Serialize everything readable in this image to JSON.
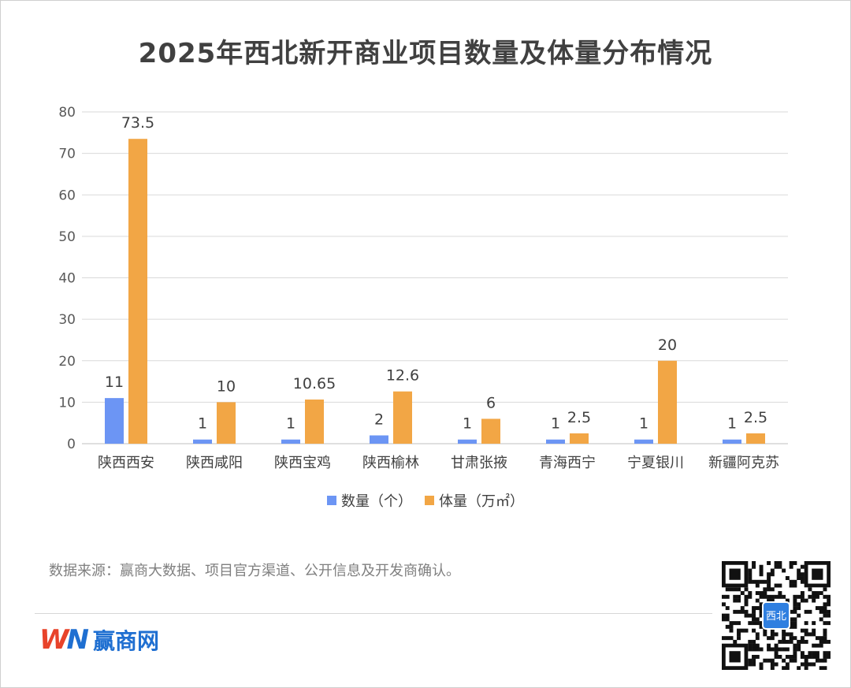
{
  "title": "2025年西北新开商业项目数量及体量分布情况",
  "colors": {
    "count": "#6c95f4",
    "volume": "#f2a645",
    "grid": "#d9d9d9",
    "text": "#404040"
  },
  "chart_data": {
    "type": "bar",
    "categories": [
      "陕西西安",
      "陕西咸阳",
      "陕西宝鸡",
      "陕西榆林",
      "甘肃张掖",
      "青海西宁",
      "宁夏银川",
      "新疆阿克苏"
    ],
    "series": [
      {
        "name": "数量（个）",
        "values": [
          11,
          1,
          1,
          2,
          1,
          1,
          1,
          1
        ],
        "labels": [
          "11",
          "1",
          "1",
          "2",
          "1",
          "1",
          "1",
          "1"
        ]
      },
      {
        "name": "体量（万㎡）",
        "values": [
          73.5,
          10,
          10.65,
          12.6,
          6,
          2.5,
          20,
          2.5
        ],
        "labels": [
          "73.5",
          "10",
          "10.65",
          "12.6",
          "6",
          "2.5",
          "20",
          "2.5"
        ]
      }
    ],
    "ylim": [
      0,
      80
    ],
    "yticks": [
      "0",
      "10",
      "20",
      "30",
      "40",
      "50",
      "60",
      "70",
      "80"
    ],
    "grid": true,
    "legend": "bottom"
  },
  "source": "数据来源：赢商大数据、项目官方渠道、公开信息及开发商确认。",
  "brand": {
    "logo_w": "W",
    "logo_n": "N",
    "name": "赢商网"
  },
  "qr_badge": "西北"
}
